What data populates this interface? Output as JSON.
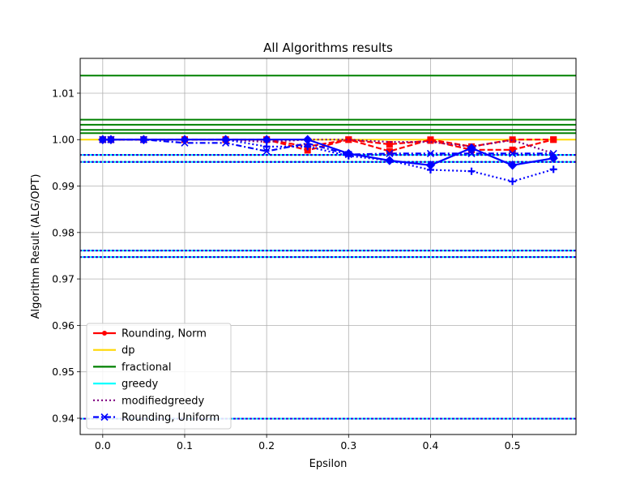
{
  "chart_data": {
    "type": "line",
    "title": "All Algorithms results",
    "xlabel": "Epsilon",
    "ylabel": "Algorithm Result (ALG/OPT)",
    "xlim": [
      -0.0275,
      0.5775
    ],
    "ylim": [
      0.9365,
      1.0175
    ],
    "xticks": [
      0.0,
      0.1,
      0.2,
      0.3,
      0.4,
      0.5
    ],
    "xtick_labels": [
      "0.0",
      "0.1",
      "0.2",
      "0.3",
      "0.4",
      "0.5"
    ],
    "yticks": [
      0.94,
      0.95,
      0.96,
      0.97,
      0.98,
      0.99,
      1.0,
      1.01
    ],
    "ytick_labels": [
      "0.94",
      "0.95",
      "0.96",
      "0.97",
      "0.98",
      "0.99",
      "1.00",
      "1.01"
    ],
    "grid": true,
    "legend_position": "lower-left",
    "colors": {
      "rounding_norm": "#ff0000",
      "dp": "#ffd700",
      "fractional": "#008000",
      "greedy": "#00ffff",
      "modifiedgreedy": "#800080",
      "rounding_uniform": "#0000ff"
    },
    "horizontal_lines": [
      {
        "group": "fractional",
        "y": 1.0138
      },
      {
        "group": "fractional",
        "y": 1.0043
      },
      {
        "group": "fractional",
        "y": 1.0032
      },
      {
        "group": "fractional",
        "y": 1.0021
      },
      {
        "group": "fractional",
        "y": 1.0014
      },
      {
        "group": "dp",
        "y": 1.0
      },
      {
        "group": "greedy",
        "y": 0.9967
      },
      {
        "group": "greedy",
        "y": 0.9952
      },
      {
        "group": "greedy",
        "y": 0.9761
      },
      {
        "group": "greedy",
        "y": 0.9747
      },
      {
        "group": "greedy",
        "y": 0.9399
      }
    ],
    "series": [
      {
        "group": "rounding_norm",
        "x": [
          0,
          0.01,
          0.05,
          0.1,
          0.15,
          0.2,
          0.25,
          0.3,
          0.35,
          0.4,
          0.45,
          0.5,
          0.55
        ],
        "y": [
          1.0,
          1.0,
          1.0,
          1.0,
          1.0,
          1.0,
          0.9985,
          1.0,
          0.9975,
          1.0,
          0.9985,
          1.0,
          1.0
        ],
        "style": "dashed"
      },
      {
        "group": "rounding_norm",
        "x": [
          0,
          0.01,
          0.05,
          0.1,
          0.15,
          0.2,
          0.25,
          0.3,
          0.35,
          0.4,
          0.45,
          0.5,
          0.55
        ],
        "y": [
          1.0,
          1.0,
          1.0,
          1.0,
          1.0,
          1.0,
          0.9977,
          1.0,
          0.999,
          0.9998,
          0.9978,
          0.9978,
          1.0
        ],
        "style": "dashed"
      },
      {
        "group": "modifiedgreedy",
        "x": [
          0,
          0.01,
          0.05,
          0.1,
          0.15,
          0.2,
          0.25,
          0.3,
          0.35,
          0.4,
          0.45,
          0.5,
          0.55
        ],
        "y": [
          1.0,
          1.0,
          1.0,
          1.0,
          1.0,
          0.9995,
          1.0,
          1.0,
          0.9995,
          0.9995,
          0.9985,
          0.9999,
          0.997
        ],
        "style": "dotted"
      },
      {
        "group": "rounding_uniform",
        "x": [
          0,
          0.01,
          0.05,
          0.1,
          0.15,
          0.2,
          0.25,
          0.3,
          0.35,
          0.4,
          0.45,
          0.5,
          0.55
        ],
        "y": [
          1.0,
          1.0,
          1.0,
          0.9993,
          0.9993,
          0.9975,
          0.9992,
          0.9968,
          0.997,
          0.997,
          0.997,
          0.997,
          0.997
        ],
        "style": "dashdot",
        "marker": "x"
      },
      {
        "group": "rounding_uniform",
        "x": [
          0,
          0.01,
          0.05,
          0.1,
          0.15,
          0.2,
          0.25,
          0.3,
          0.35,
          0.4,
          0.45,
          0.5,
          0.55
        ],
        "y": [
          1.0,
          1.0,
          1.0,
          1.0,
          1.0,
          0.9985,
          0.9985,
          0.9965,
          0.9955,
          0.9935,
          0.9932,
          0.991,
          0.9936
        ],
        "style": "dotted",
        "marker": "plus"
      },
      {
        "group": "rounding_uniform",
        "x": [
          0,
          0.01,
          0.05,
          0.1,
          0.15,
          0.2,
          0.25,
          0.3,
          0.35,
          0.4,
          0.45,
          0.5,
          0.55
        ],
        "y": [
          1.0,
          1.0,
          1.0,
          1.0,
          1.0,
          1.0,
          1.0,
          0.997,
          0.9955,
          0.9945,
          0.9982,
          0.9945,
          0.996
        ],
        "style": "solid",
        "marker": "diamond"
      }
    ],
    "legend": [
      {
        "label": "Rounding, Norm",
        "key": "rounding_norm",
        "style": "solid",
        "marker": "dot"
      },
      {
        "label": "dp",
        "key": "dp",
        "style": "solid",
        "marker": "none"
      },
      {
        "label": "fractional",
        "key": "fractional",
        "style": "solid",
        "marker": "none"
      },
      {
        "label": "greedy",
        "key": "greedy",
        "style": "solid",
        "marker": "none"
      },
      {
        "label": "modifiedgreedy",
        "key": "modifiedgreedy",
        "style": "dotted",
        "marker": "none"
      },
      {
        "label": "Rounding, Uniform",
        "key": "rounding_uniform",
        "style": "dashdot",
        "marker": "x"
      }
    ]
  }
}
